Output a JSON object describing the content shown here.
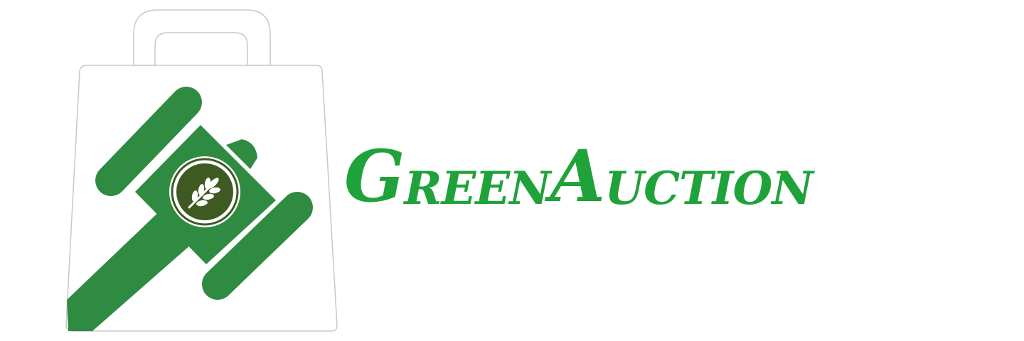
{
  "brand": {
    "name_parts": [
      {
        "cap": "G",
        "rest": "reen"
      },
      {
        "cap": "A",
        "rest": "uction"
      }
    ],
    "colors": {
      "text_green": "#1fa23a",
      "gavel_green": "#2f8a42",
      "emblem_dark": "#3e5a22",
      "bag_fill": "#ffffff",
      "bag_stroke": "#c8c8c8"
    },
    "icons": [
      "shopping-bag-icon",
      "gavel-icon",
      "wheat-icon"
    ]
  }
}
